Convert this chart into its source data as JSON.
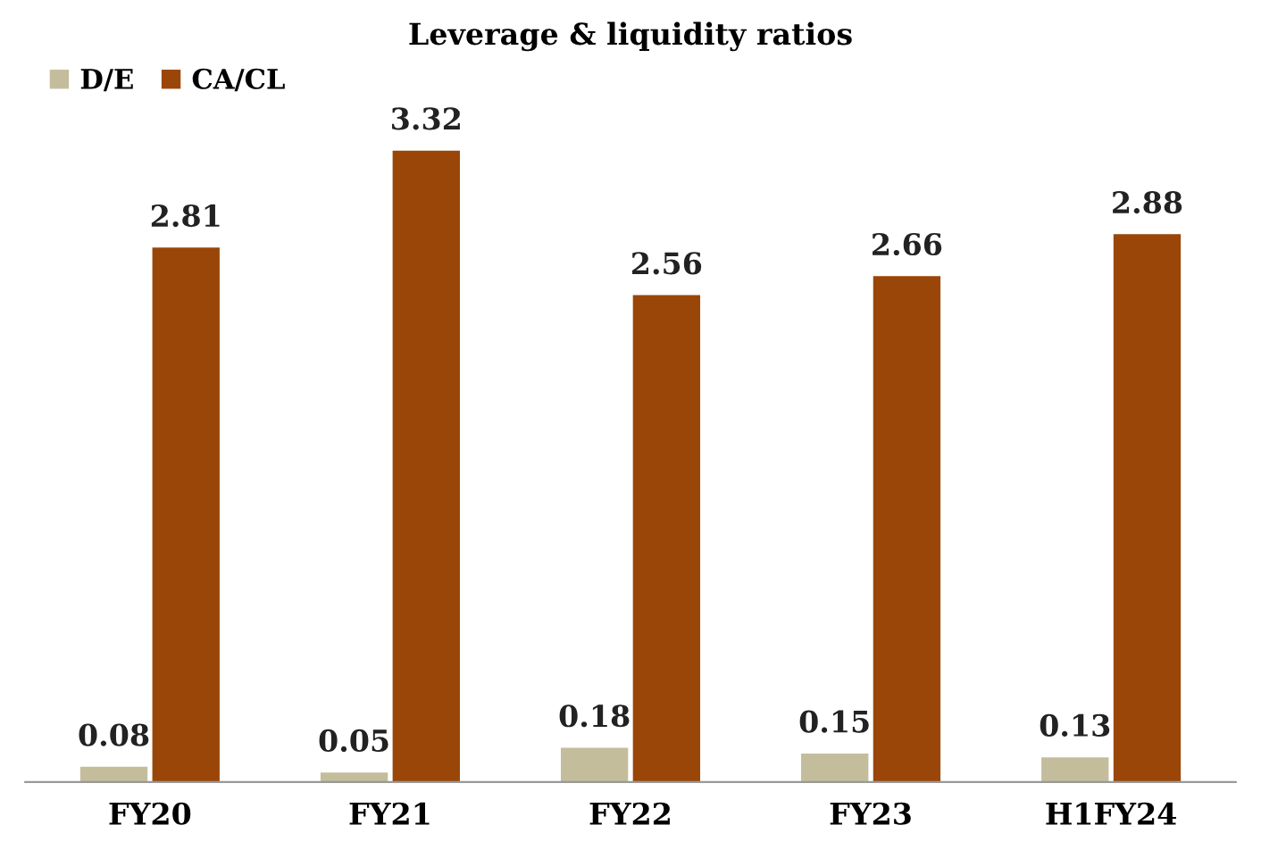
{
  "chart_data": {
    "type": "bar",
    "title": "Leverage & liquidity ratios",
    "categories": [
      "FY20",
      "FY21",
      "FY22",
      "FY23",
      "H1FY24"
    ],
    "series": [
      {
        "name": "D/E",
        "color": "#c4bd9c",
        "values": [
          0.08,
          0.05,
          0.18,
          0.15,
          0.13
        ]
      },
      {
        "name": "CA/CL",
        "color": "#9a4608",
        "values": [
          2.81,
          3.32,
          2.56,
          2.66,
          2.88
        ]
      }
    ],
    "data_labels": true,
    "legend": "top left",
    "grid": false
  }
}
